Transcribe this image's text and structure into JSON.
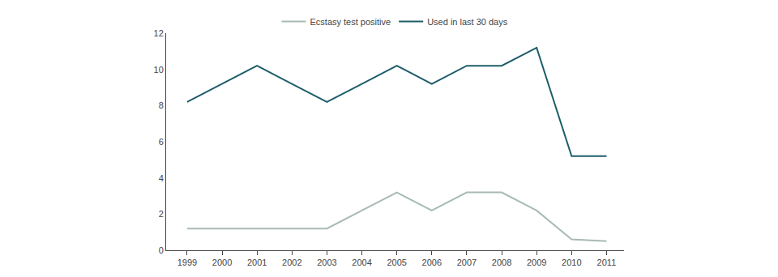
{
  "chart_data": {
    "type": "line",
    "x": [
      1999,
      2000,
      2001,
      2002,
      2003,
      2004,
      2005,
      2006,
      2007,
      2008,
      2009,
      2010,
      2011
    ],
    "series": [
      {
        "name": "Ecstasy test positive",
        "color": "#a8bab5",
        "values": [
          1.2,
          1.2,
          1.2,
          1.2,
          1.2,
          2.2,
          3.2,
          2.2,
          3.2,
          3.2,
          2.2,
          0.6,
          0.5
        ]
      },
      {
        "name": "Used in last 30 days",
        "color": "#1d5e6a",
        "values": [
          8.2,
          9.2,
          10.2,
          9.2,
          8.2,
          9.2,
          10.2,
          9.2,
          10.2,
          10.2,
          11.2,
          5.2,
          5.2
        ]
      }
    ],
    "xlim": [
      1998.4,
      2011.5
    ],
    "xticks": [
      1999,
      2000,
      2001,
      2002,
      2003,
      2004,
      2005,
      2006,
      2007,
      2008,
      2009,
      2010,
      2011
    ],
    "ylim": [
      0,
      12
    ],
    "yticks": [
      0,
      2,
      4,
      6,
      8,
      10,
      12
    ],
    "grid": false,
    "legend": "top"
  }
}
